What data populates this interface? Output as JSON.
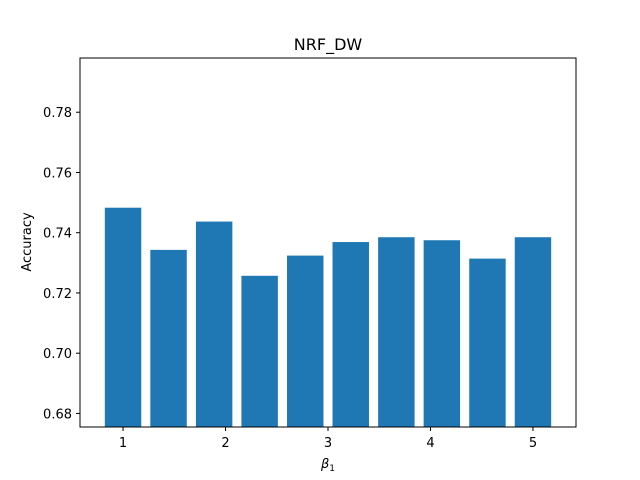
{
  "chart_data": {
    "type": "bar",
    "title": "NRF_DW",
    "xlabel": "β",
    "xlabel_subscript": "1",
    "ylabel": "Accuracy",
    "x": [
      1.0,
      1.444,
      1.889,
      2.333,
      2.778,
      3.222,
      3.667,
      4.111,
      4.556,
      5.0
    ],
    "values": [
      0.7483,
      0.7343,
      0.7437,
      0.7257,
      0.7324,
      0.7369,
      0.7385,
      0.7375,
      0.7314,
      0.7385
    ],
    "xlim": [
      0.58,
      5.42
    ],
    "ylim": [
      0.6755,
      0.798
    ],
    "xticks": [
      1,
      2,
      3,
      4,
      5
    ],
    "yticks": [
      0.68,
      0.7,
      0.72,
      0.74,
      0.76,
      0.78
    ],
    "ytick_labels": [
      "0.68",
      "0.70",
      "0.72",
      "0.74",
      "0.76",
      "0.78"
    ],
    "bar_color": "#1f77b4",
    "grid": false
  }
}
